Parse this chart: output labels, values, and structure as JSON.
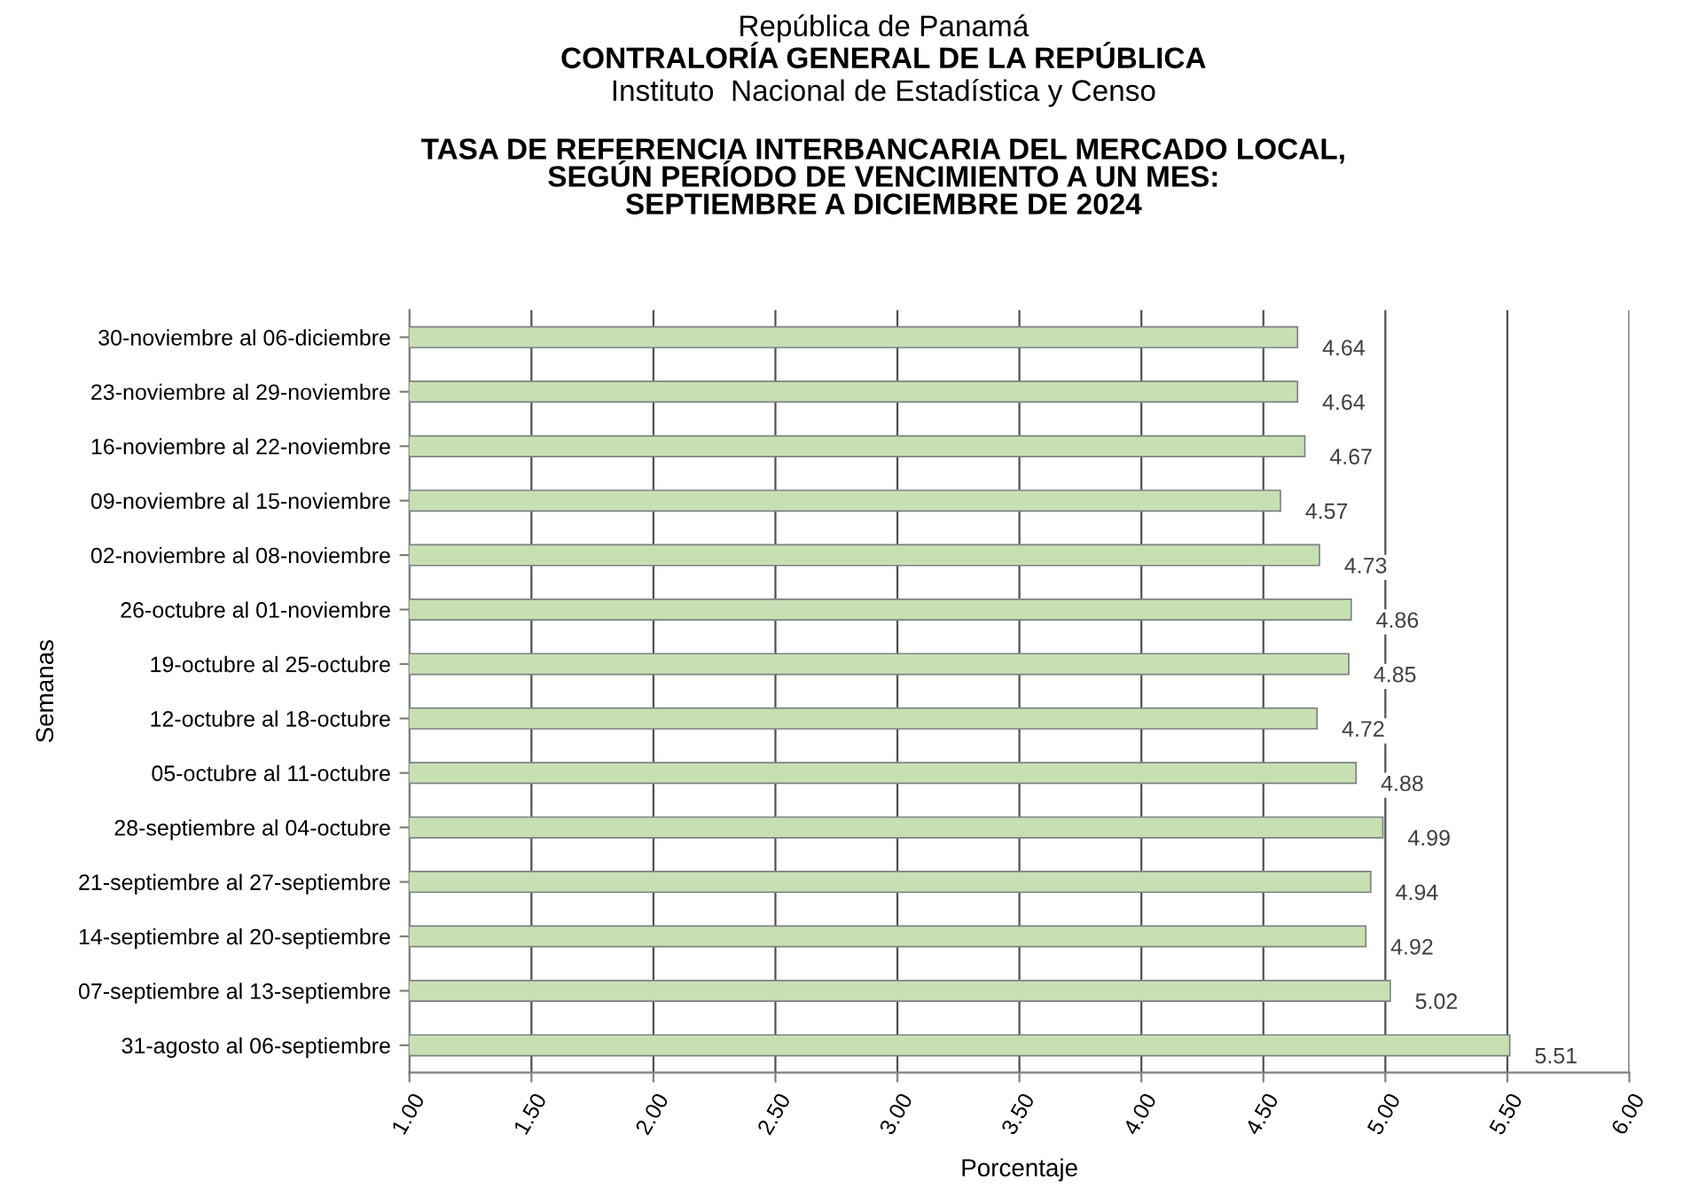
{
  "chart_data": {
    "type": "bar",
    "orientation": "horizontal",
    "title": "TASA DE REFERENCIA INTERBANCARIA DEL MERCADO LOCAL,\nSEGÚN PERÍODO DE VENCIMIENTO A UN MES:\nSEPTIEMBRE A DICIEMBRE DE 2024",
    "annotations": [
      "República de Panamá",
      "CONTRALORÍA GENERAL DE LA REPÚBLICA",
      "Instituto  Nacional de Estadística y Censo"
    ],
    "xlabel": "Porcentaje",
    "ylabel": "Semanas",
    "categories": [
      "30-noviembre al 06-diciembre",
      "23-noviembre al 29-noviembre",
      "16-noviembre al 22-noviembre",
      "09-noviembre al 15-noviembre",
      "02-noviembre al 08-noviembre",
      "26-octubre al 01-noviembre",
      "19-octubre al 25-octubre",
      "12-octubre al 18-octubre",
      "05-octubre al 11-octubre",
      "28-septiembre al 04-octubre",
      "21-septiembre al 27-septiembre",
      "14-septiembre al 20-septiembre",
      "07-septiembre al 13-septiembre",
      "31-agosto al 06-septiembre"
    ],
    "values": [
      4.64,
      4.64,
      4.67,
      4.57,
      4.73,
      4.86,
      4.85,
      4.72,
      4.88,
      4.99,
      4.94,
      4.92,
      5.02,
      5.51
    ],
    "color": "#c6e0b4",
    "xlim": [
      1.0,
      6.0
    ],
    "xticks": [
      {
        "value": 1.0,
        "label": "1.00"
      },
      {
        "value": 1.5,
        "label": "1.50"
      },
      {
        "value": 2.0,
        "label": "2.00"
      },
      {
        "value": 2.5,
        "label": "2.50"
      },
      {
        "value": 3.0,
        "label": "3.00"
      },
      {
        "value": 3.5,
        "label": "3.50"
      },
      {
        "value": 4.0,
        "label": "4.00"
      },
      {
        "value": 4.5,
        "label": "4.50"
      },
      {
        "value": 5.0,
        "label": "5.00"
      },
      {
        "value": 5.5,
        "label": "5.50"
      },
      {
        "value": 6.0,
        "label": "6.00"
      }
    ],
    "grid": "x",
    "data_labels": true
  }
}
